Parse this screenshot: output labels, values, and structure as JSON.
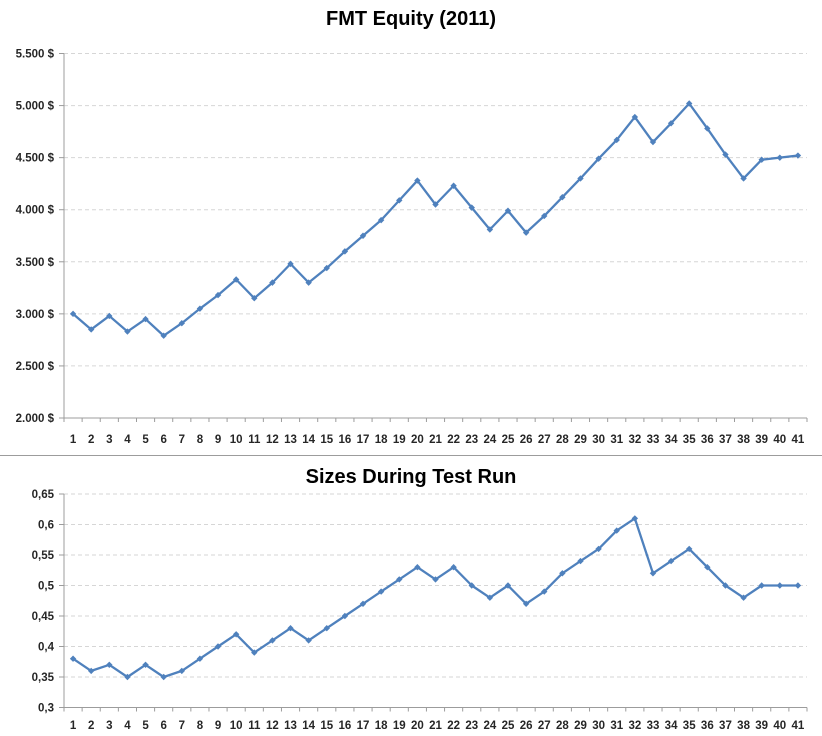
{
  "colors": {
    "series_line": "#4F81BD",
    "gridline": "#D6D6D6",
    "axis": "#9C9C9C",
    "tick_label": "#262626",
    "title": "#000000",
    "separator": "#9C9C9C",
    "background": "#FFFFFF"
  },
  "chart_data": [
    {
      "type": "line",
      "title": "FMT Equity (2011)",
      "xlabel": "",
      "ylabel": "",
      "legend": "none",
      "grid": true,
      "marker": "diamond",
      "line_color": "#4F81BD",
      "categories": [
        1,
        2,
        3,
        4,
        5,
        6,
        7,
        8,
        9,
        10,
        11,
        12,
        13,
        14,
        15,
        16,
        17,
        18,
        19,
        20,
        21,
        22,
        23,
        24,
        25,
        26,
        27,
        28,
        29,
        30,
        31,
        32,
        33,
        34,
        35,
        36,
        37,
        38,
        39,
        40,
        41
      ],
      "values": [
        3000,
        2850,
        2980,
        2830,
        2950,
        2790,
        2910,
        3050,
        3180,
        3330,
        3150,
        3300,
        3480,
        3300,
        3440,
        3600,
        3750,
        3900,
        4090,
        4280,
        4050,
        4230,
        4020,
        3810,
        3990,
        3780,
        3940,
        4120,
        4300,
        4490,
        4670,
        4890,
        4650,
        4830,
        5020,
        4780,
        4530,
        4300,
        4480,
        4500,
        4520
      ],
      "ylim": [
        2000,
        5500
      ],
      "ytick_step": 500,
      "ytick_labels": [
        "2.000 $",
        "2.500 $",
        "3.000 $",
        "3.500 $",
        "4.000 $",
        "4.500 $",
        "5.000 $",
        "5.500 $"
      ]
    },
    {
      "type": "line",
      "title": "Sizes During Test Run",
      "xlabel": "",
      "ylabel": "",
      "legend": "none",
      "grid": true,
      "marker": "diamond",
      "line_color": "#4F81BD",
      "categories": [
        1,
        2,
        3,
        4,
        5,
        6,
        7,
        8,
        9,
        10,
        11,
        12,
        13,
        14,
        15,
        16,
        17,
        18,
        19,
        20,
        21,
        22,
        23,
        24,
        25,
        26,
        27,
        28,
        29,
        30,
        31,
        32,
        33,
        34,
        35,
        36,
        37,
        38,
        39,
        40,
        41
      ],
      "values": [
        0.38,
        0.36,
        0.37,
        0.35,
        0.37,
        0.35,
        0.36,
        0.38,
        0.4,
        0.42,
        0.39,
        0.41,
        0.43,
        0.41,
        0.43,
        0.45,
        0.47,
        0.49,
        0.51,
        0.53,
        0.51,
        0.53,
        0.5,
        0.48,
        0.5,
        0.47,
        0.49,
        0.52,
        0.54,
        0.56,
        0.59,
        0.61,
        0.52,
        0.54,
        0.56,
        0.53,
        0.5,
        0.48,
        0.5,
        0.5,
        0.5
      ],
      "ylim": [
        0.3,
        0.65
      ],
      "ytick_step": 0.05,
      "ytick_labels": [
        "0,3",
        "0,35",
        "0,4",
        "0,45",
        "0,5",
        "0,55",
        "0,6",
        "0,65"
      ]
    }
  ]
}
